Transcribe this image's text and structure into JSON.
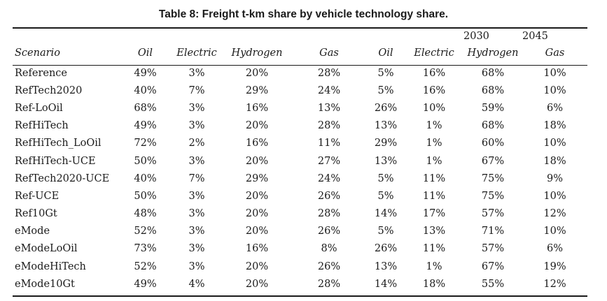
{
  "caption": "Table 8: Freight t-km share by vehicle technology share.",
  "years": [
    "2030",
    "2045"
  ],
  "columns": [
    "Scenario",
    "Oil",
    "Electric",
    "Hydrogen",
    "Gas",
    "Oil",
    "Electric",
    "Hydrogen",
    "Gas"
  ],
  "rows": [
    [
      "Reference",
      "49%",
      "3%",
      "20%",
      "28%",
      "5%",
      "16%",
      "68%",
      "10%"
    ],
    [
      "RefTech2020",
      "40%",
      "7%",
      "29%",
      "24%",
      "5%",
      "16%",
      "68%",
      "10%"
    ],
    [
      "Ref-LoOil",
      "68%",
      "3%",
      "16%",
      "13%",
      "26%",
      "10%",
      "59%",
      "6%"
    ],
    [
      "RefHiTech",
      "49%",
      "3%",
      "20%",
      "28%",
      "13%",
      "1%",
      "68%",
      "18%"
    ],
    [
      "RefHiTech_LoOil",
      "72%",
      "2%",
      "16%",
      "11%",
      "29%",
      "1%",
      "60%",
      "10%"
    ],
    [
      "RefHiTech-UCE",
      "50%",
      "3%",
      "20%",
      "27%",
      "13%",
      "1%",
      "67%",
      "18%"
    ],
    [
      "RefTech2020-UCE",
      "40%",
      "7%",
      "29%",
      "24%",
      "5%",
      "11%",
      "75%",
      "9%"
    ],
    [
      "Ref-UCE",
      "50%",
      "3%",
      "20%",
      "26%",
      "5%",
      "11%",
      "75%",
      "10%"
    ],
    [
      "Ref10Gt",
      "48%",
      "3%",
      "20%",
      "28%",
      "14%",
      "17%",
      "57%",
      "12%"
    ],
    [
      "eMode",
      "52%",
      "3%",
      "20%",
      "26%",
      "5%",
      "13%",
      "71%",
      "10%"
    ],
    [
      "eModeLoOil",
      "73%",
      "3%",
      "16%",
      "8%",
      "26%",
      "11%",
      "57%",
      "6%"
    ],
    [
      "eModeHiTech",
      "52%",
      "3%",
      "20%",
      "26%",
      "13%",
      "1%",
      "67%",
      "19%"
    ],
    [
      "eMode10Gt",
      "49%",
      "4%",
      "20%",
      "28%",
      "14%",
      "18%",
      "55%",
      "12%"
    ]
  ]
}
